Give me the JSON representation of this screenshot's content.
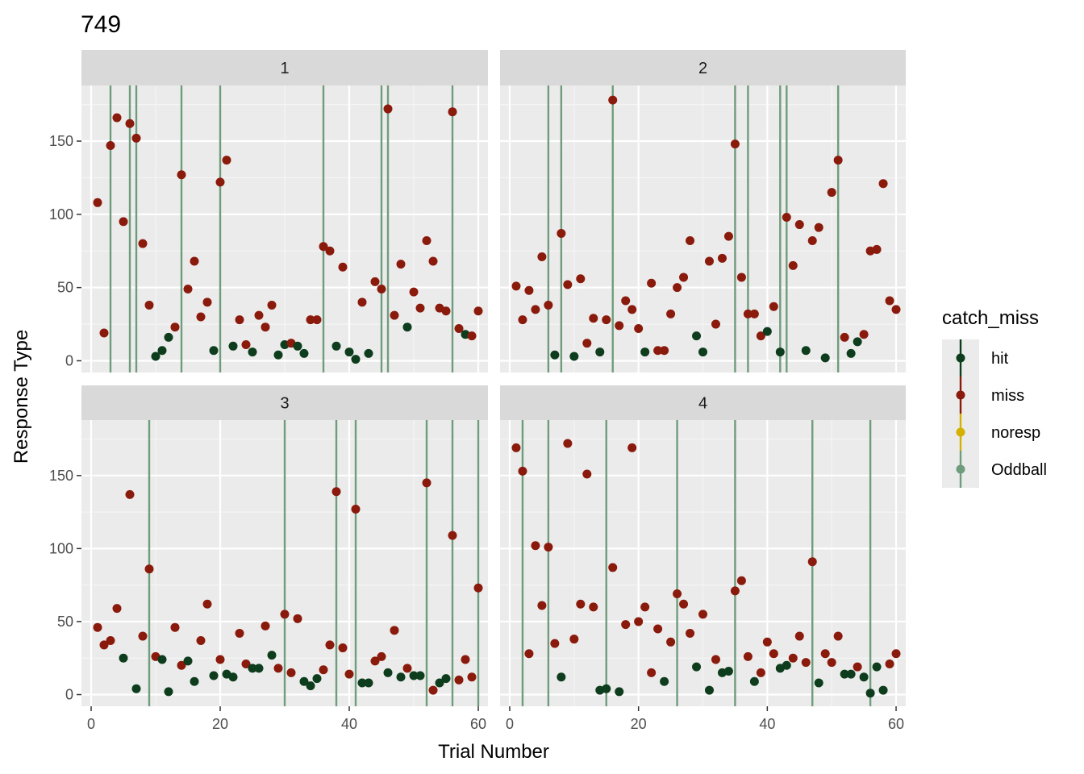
{
  "chart_data": {
    "type": "scatter",
    "title": "749",
    "xlabel": "Trial Number",
    "ylabel": "Response Type",
    "xlim": [
      -1.5,
      61.5
    ],
    "ylim": [
      -8,
      188
    ],
    "x_ticks": [
      0,
      20,
      40,
      60
    ],
    "y_ticks": [
      0,
      50,
      100,
      150
    ],
    "grid": true,
    "legend": {
      "title": "catch_miss",
      "position": "right",
      "entries": [
        {
          "label": "hit",
          "color": "#0d3d1c"
        },
        {
          "label": "miss",
          "color": "#8a1a0b"
        },
        {
          "label": "noresp",
          "color": "#d4b000"
        },
        {
          "label": "Oddball",
          "color": "#6e9c7c"
        }
      ]
    },
    "colors": {
      "hit": "#0d3d1c",
      "miss": "#8a1a0b",
      "noresp": "#d4b000",
      "Oddball": "#6e9c7c"
    },
    "panels": [
      {
        "label": "1",
        "oddball_trials": [
          3,
          6,
          7,
          14,
          20,
          36,
          45,
          46,
          56
        ],
        "points": [
          [
            1,
            108,
            "miss"
          ],
          [
            2,
            19,
            "miss"
          ],
          [
            3,
            147,
            "miss"
          ],
          [
            4,
            166,
            "miss"
          ],
          [
            5,
            95,
            "miss"
          ],
          [
            6,
            162,
            "miss"
          ],
          [
            7,
            152,
            "miss"
          ],
          [
            8,
            80,
            "miss"
          ],
          [
            9,
            38,
            "miss"
          ],
          [
            10,
            3,
            "hit"
          ],
          [
            11,
            7,
            "hit"
          ],
          [
            12,
            16,
            "hit"
          ],
          [
            13,
            23,
            "miss"
          ],
          [
            14,
            127,
            "miss"
          ],
          [
            15,
            49,
            "miss"
          ],
          [
            16,
            68,
            "miss"
          ],
          [
            17,
            30,
            "miss"
          ],
          [
            18,
            40,
            "miss"
          ],
          [
            19,
            7,
            "hit"
          ],
          [
            20,
            122,
            "miss"
          ],
          [
            21,
            137,
            "miss"
          ],
          [
            22,
            10,
            "hit"
          ],
          [
            23,
            28,
            "miss"
          ],
          [
            24,
            11,
            "miss"
          ],
          [
            25,
            6,
            "hit"
          ],
          [
            26,
            31,
            "miss"
          ],
          [
            27,
            23,
            "miss"
          ],
          [
            28,
            38,
            "miss"
          ],
          [
            29,
            4,
            "hit"
          ],
          [
            30,
            11,
            "hit"
          ],
          [
            31,
            12,
            "miss"
          ],
          [
            32,
            10,
            "hit"
          ],
          [
            33,
            5,
            "hit"
          ],
          [
            34,
            28,
            "miss"
          ],
          [
            35,
            28,
            "miss"
          ],
          [
            36,
            78,
            "miss"
          ],
          [
            37,
            75,
            "miss"
          ],
          [
            38,
            10,
            "hit"
          ],
          [
            39,
            64,
            "miss"
          ],
          [
            40,
            6,
            "hit"
          ],
          [
            41,
            1,
            "hit"
          ],
          [
            42,
            40,
            "miss"
          ],
          [
            43,
            5,
            "hit"
          ],
          [
            44,
            54,
            "miss"
          ],
          [
            45,
            49,
            "miss"
          ],
          [
            46,
            172,
            "miss"
          ],
          [
            47,
            31,
            "miss"
          ],
          [
            48,
            66,
            "miss"
          ],
          [
            49,
            23,
            "hit"
          ],
          [
            50,
            47,
            "miss"
          ],
          [
            51,
            36,
            "miss"
          ],
          [
            52,
            82,
            "miss"
          ],
          [
            53,
            68,
            "miss"
          ],
          [
            54,
            36,
            "miss"
          ],
          [
            55,
            34,
            "miss"
          ],
          [
            56,
            170,
            "miss"
          ],
          [
            57,
            22,
            "miss"
          ],
          [
            58,
            18,
            "hit"
          ],
          [
            59,
            17,
            "miss"
          ],
          [
            60,
            34,
            "miss"
          ]
        ]
      },
      {
        "label": "2",
        "oddball_trials": [
          6,
          8,
          16,
          35,
          37,
          42,
          43,
          51
        ],
        "points": [
          [
            1,
            51,
            "miss"
          ],
          [
            2,
            28,
            "miss"
          ],
          [
            3,
            48,
            "miss"
          ],
          [
            4,
            35,
            "miss"
          ],
          [
            5,
            71,
            "miss"
          ],
          [
            6,
            38,
            "miss"
          ],
          [
            7,
            4,
            "hit"
          ],
          [
            8,
            87,
            "miss"
          ],
          [
            9,
            52,
            "miss"
          ],
          [
            10,
            3,
            "hit"
          ],
          [
            11,
            56,
            "miss"
          ],
          [
            12,
            12,
            "miss"
          ],
          [
            13,
            29,
            "miss"
          ],
          [
            14,
            6,
            "hit"
          ],
          [
            15,
            28,
            "miss"
          ],
          [
            16,
            178,
            "miss"
          ],
          [
            17,
            24,
            "miss"
          ],
          [
            18,
            41,
            "miss"
          ],
          [
            19,
            35,
            "miss"
          ],
          [
            20,
            22,
            "miss"
          ],
          [
            21,
            6,
            "hit"
          ],
          [
            22,
            53,
            "miss"
          ],
          [
            23,
            7,
            "miss"
          ],
          [
            24,
            7,
            "miss"
          ],
          [
            25,
            32,
            "miss"
          ],
          [
            26,
            50,
            "miss"
          ],
          [
            27,
            57,
            "miss"
          ],
          [
            28,
            82,
            "miss"
          ],
          [
            29,
            17,
            "hit"
          ],
          [
            30,
            6,
            "hit"
          ],
          [
            31,
            68,
            "miss"
          ],
          [
            32,
            25,
            "miss"
          ],
          [
            33,
            70,
            "miss"
          ],
          [
            34,
            85,
            "miss"
          ],
          [
            35,
            148,
            "miss"
          ],
          [
            36,
            57,
            "miss"
          ],
          [
            37,
            32,
            "miss"
          ],
          [
            38,
            32,
            "miss"
          ],
          [
            39,
            17,
            "miss"
          ],
          [
            40,
            20,
            "hit"
          ],
          [
            41,
            37,
            "miss"
          ],
          [
            42,
            6,
            "hit"
          ],
          [
            43,
            98,
            "miss"
          ],
          [
            44,
            65,
            "miss"
          ],
          [
            45,
            93,
            "miss"
          ],
          [
            46,
            7,
            "hit"
          ],
          [
            47,
            82,
            "miss"
          ],
          [
            48,
            91,
            "miss"
          ],
          [
            49,
            2,
            "hit"
          ],
          [
            50,
            115,
            "miss"
          ],
          [
            51,
            137,
            "miss"
          ],
          [
            52,
            16,
            "miss"
          ],
          [
            53,
            5,
            "hit"
          ],
          [
            54,
            13,
            "hit"
          ],
          [
            55,
            18,
            "miss"
          ],
          [
            56,
            75,
            "miss"
          ],
          [
            57,
            76,
            "miss"
          ],
          [
            58,
            121,
            "miss"
          ],
          [
            59,
            41,
            "miss"
          ],
          [
            60,
            35,
            "miss"
          ]
        ]
      },
      {
        "label": "3",
        "oddball_trials": [
          9,
          30,
          38,
          41,
          52,
          56,
          60
        ],
        "points": [
          [
            1,
            46,
            "miss"
          ],
          [
            2,
            34,
            "miss"
          ],
          [
            3,
            37,
            "miss"
          ],
          [
            4,
            59,
            "miss"
          ],
          [
            5,
            25,
            "hit"
          ],
          [
            6,
            137,
            "miss"
          ],
          [
            7,
            4,
            "hit"
          ],
          [
            8,
            40,
            "miss"
          ],
          [
            9,
            86,
            "miss"
          ],
          [
            10,
            26,
            "miss"
          ],
          [
            11,
            24,
            "hit"
          ],
          [
            12,
            2,
            "hit"
          ],
          [
            13,
            46,
            "miss"
          ],
          [
            14,
            20,
            "miss"
          ],
          [
            15,
            23,
            "hit"
          ],
          [
            16,
            9,
            "hit"
          ],
          [
            17,
            37,
            "miss"
          ],
          [
            18,
            62,
            "miss"
          ],
          [
            19,
            13,
            "hit"
          ],
          [
            20,
            24,
            "miss"
          ],
          [
            21,
            14,
            "hit"
          ],
          [
            22,
            12,
            "hit"
          ],
          [
            23,
            42,
            "miss"
          ],
          [
            24,
            21,
            "miss"
          ],
          [
            25,
            18,
            "hit"
          ],
          [
            26,
            18,
            "hit"
          ],
          [
            27,
            47,
            "miss"
          ],
          [
            28,
            27,
            "hit"
          ],
          [
            29,
            18,
            "miss"
          ],
          [
            30,
            55,
            "miss"
          ],
          [
            31,
            15,
            "miss"
          ],
          [
            32,
            52,
            "miss"
          ],
          [
            33,
            9,
            "hit"
          ],
          [
            34,
            6,
            "hit"
          ],
          [
            35,
            11,
            "hit"
          ],
          [
            36,
            17,
            "miss"
          ],
          [
            37,
            34,
            "miss"
          ],
          [
            38,
            139,
            "miss"
          ],
          [
            39,
            32,
            "miss"
          ],
          [
            40,
            14,
            "miss"
          ],
          [
            41,
            127,
            "miss"
          ],
          [
            42,
            8,
            "hit"
          ],
          [
            43,
            8,
            "hit"
          ],
          [
            44,
            23,
            "miss"
          ],
          [
            45,
            26,
            "miss"
          ],
          [
            46,
            15,
            "hit"
          ],
          [
            47,
            44,
            "miss"
          ],
          [
            48,
            12,
            "hit"
          ],
          [
            49,
            18,
            "miss"
          ],
          [
            50,
            13,
            "hit"
          ],
          [
            51,
            13,
            "hit"
          ],
          [
            52,
            145,
            "miss"
          ],
          [
            53,
            3,
            "miss"
          ],
          [
            54,
            8,
            "hit"
          ],
          [
            55,
            11,
            "hit"
          ],
          [
            56,
            109,
            "miss"
          ],
          [
            57,
            10,
            "miss"
          ],
          [
            58,
            24,
            "miss"
          ],
          [
            59,
            12,
            "miss"
          ],
          [
            60,
            73,
            "miss"
          ]
        ]
      },
      {
        "label": "4",
        "oddball_trials": [
          2,
          6,
          15,
          26,
          35,
          47,
          56
        ],
        "points": [
          [
            1,
            169,
            "miss"
          ],
          [
            2,
            153,
            "miss"
          ],
          [
            3,
            28,
            "miss"
          ],
          [
            4,
            102,
            "miss"
          ],
          [
            5,
            61,
            "miss"
          ],
          [
            6,
            101,
            "miss"
          ],
          [
            7,
            35,
            "miss"
          ],
          [
            8,
            12,
            "hit"
          ],
          [
            9,
            172,
            "miss"
          ],
          [
            10,
            38,
            "miss"
          ],
          [
            11,
            62,
            "miss"
          ],
          [
            12,
            151,
            "miss"
          ],
          [
            13,
            60,
            "miss"
          ],
          [
            14,
            3,
            "hit"
          ],
          [
            15,
            4,
            "hit"
          ],
          [
            16,
            87,
            "miss"
          ],
          [
            17,
            2,
            "hit"
          ],
          [
            18,
            48,
            "miss"
          ],
          [
            19,
            169,
            "miss"
          ],
          [
            20,
            50,
            "miss"
          ],
          [
            21,
            60,
            "miss"
          ],
          [
            22,
            15,
            "miss"
          ],
          [
            23,
            45,
            "miss"
          ],
          [
            24,
            9,
            "hit"
          ],
          [
            25,
            36,
            "miss"
          ],
          [
            26,
            69,
            "miss"
          ],
          [
            27,
            62,
            "miss"
          ],
          [
            28,
            42,
            "miss"
          ],
          [
            29,
            19,
            "hit"
          ],
          [
            30,
            55,
            "miss"
          ],
          [
            31,
            3,
            "hit"
          ],
          [
            32,
            24,
            "miss"
          ],
          [
            33,
            15,
            "hit"
          ],
          [
            34,
            16,
            "hit"
          ],
          [
            35,
            71,
            "miss"
          ],
          [
            36,
            78,
            "miss"
          ],
          [
            37,
            26,
            "miss"
          ],
          [
            38,
            9,
            "hit"
          ],
          [
            39,
            15,
            "miss"
          ],
          [
            40,
            36,
            "miss"
          ],
          [
            41,
            28,
            "miss"
          ],
          [
            42,
            18,
            "hit"
          ],
          [
            43,
            20,
            "hit"
          ],
          [
            44,
            25,
            "miss"
          ],
          [
            45,
            40,
            "miss"
          ],
          [
            46,
            22,
            "miss"
          ],
          [
            47,
            91,
            "miss"
          ],
          [
            48,
            8,
            "hit"
          ],
          [
            49,
            28,
            "miss"
          ],
          [
            50,
            22,
            "miss"
          ],
          [
            51,
            40,
            "miss"
          ],
          [
            52,
            14,
            "hit"
          ],
          [
            53,
            14,
            "hit"
          ],
          [
            54,
            19,
            "miss"
          ],
          [
            55,
            12,
            "hit"
          ],
          [
            56,
            1,
            "hit"
          ],
          [
            57,
            19,
            "hit"
          ],
          [
            58,
            3,
            "hit"
          ],
          [
            59,
            21,
            "miss"
          ],
          [
            60,
            28,
            "miss"
          ]
        ]
      }
    ]
  }
}
